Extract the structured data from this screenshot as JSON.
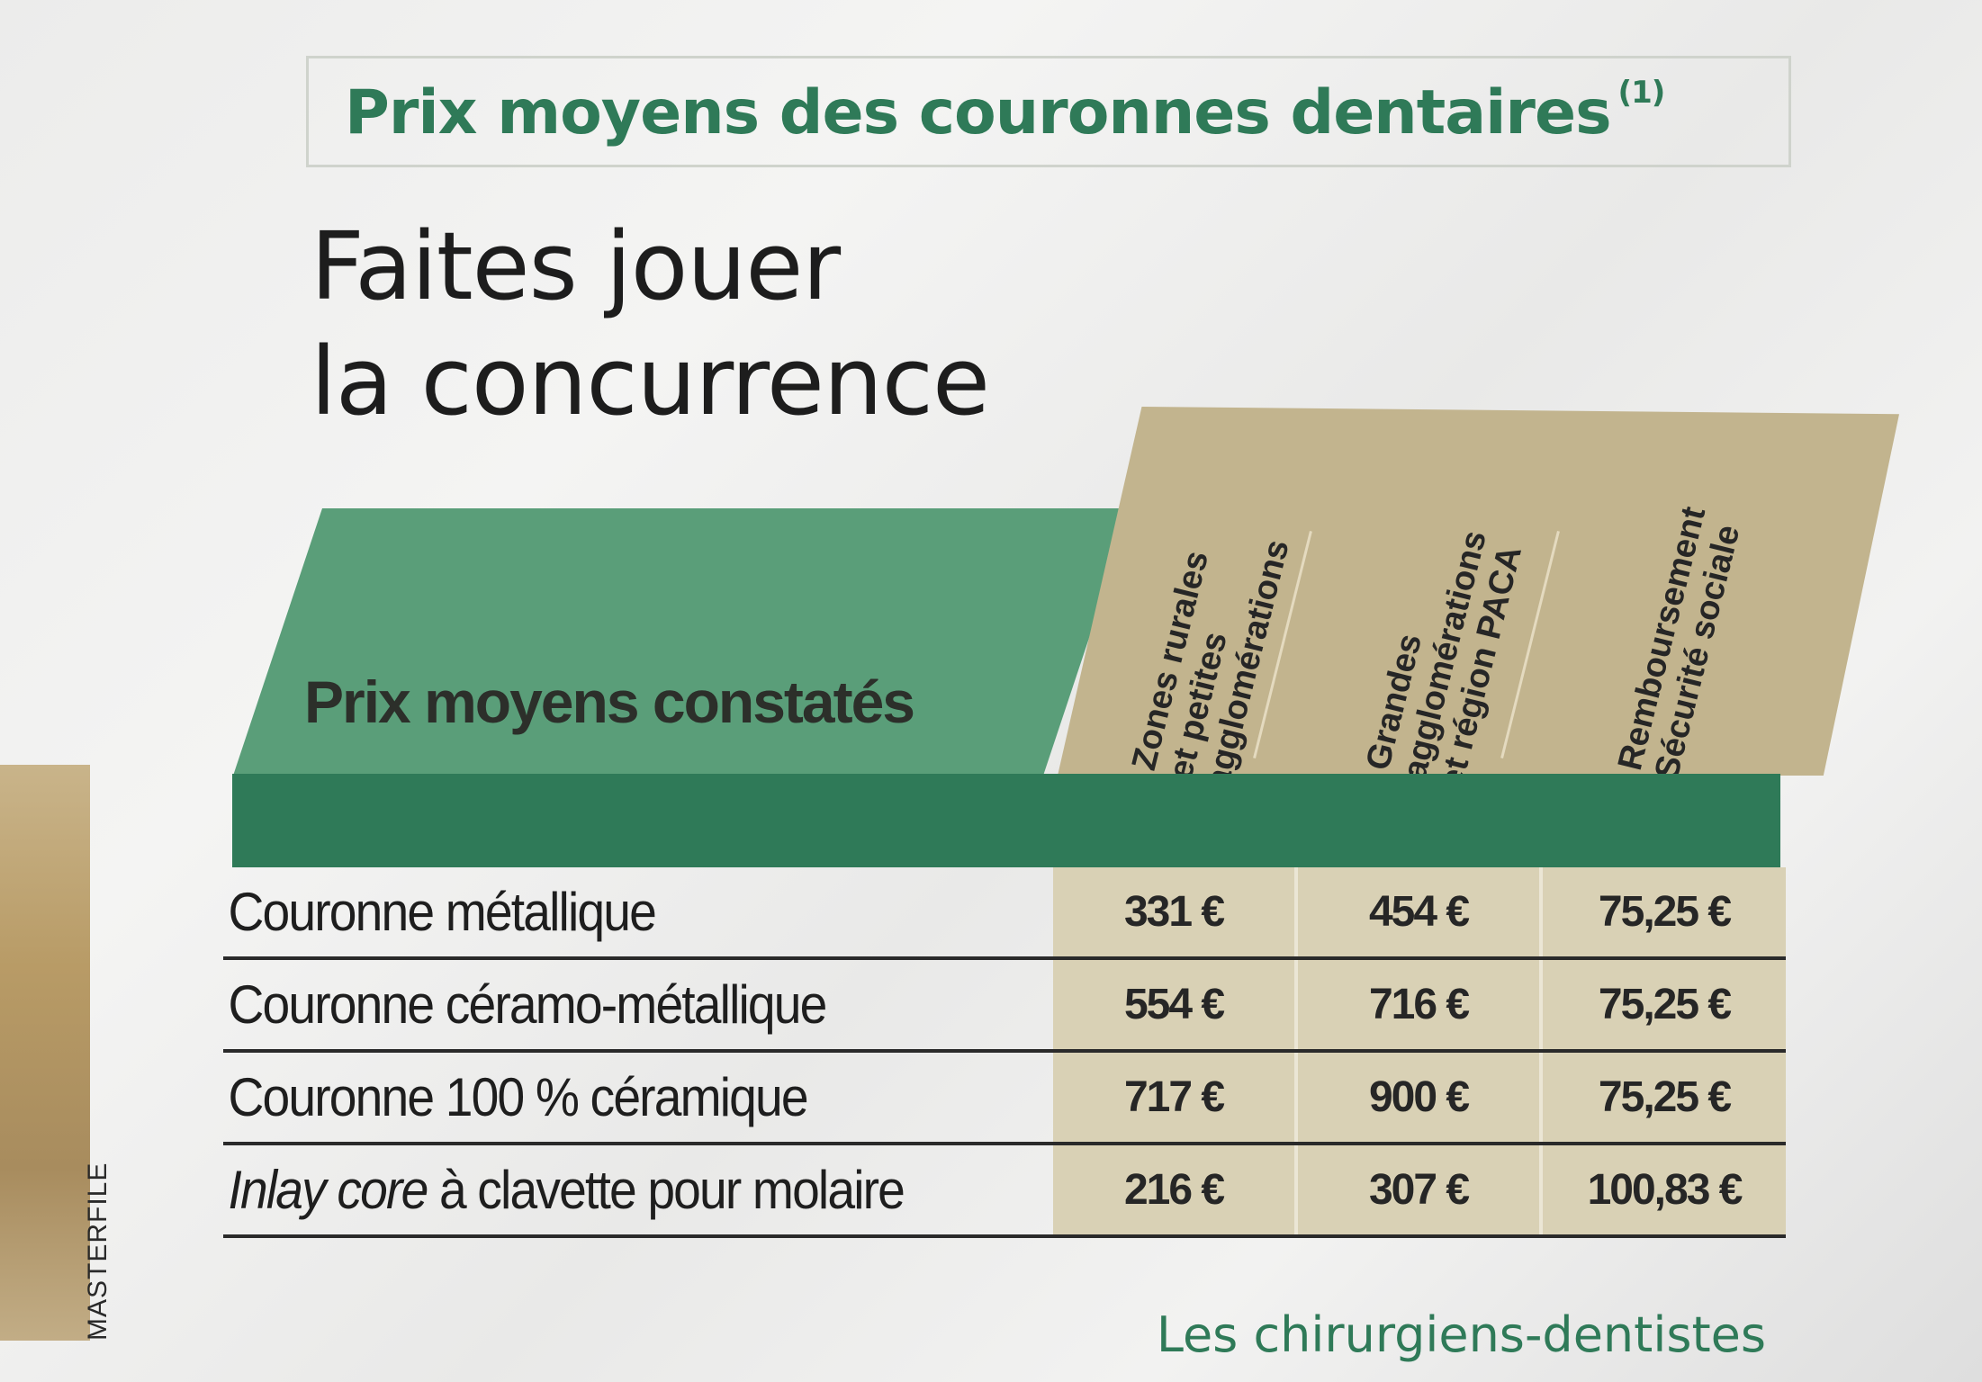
{
  "title": {
    "text": "Prix moyens des couronnes dentaires",
    "note": "(1)"
  },
  "headline": {
    "line1": "Faites jouer",
    "line2": "la concurrence"
  },
  "table": {
    "row_header": "Prix moyens constatés",
    "columns": [
      "Zones rurales\net petites\nagglomérations",
      "Grandes\nagglomérations\net région PACA",
      "Remboursement\nSécurité sociale"
    ],
    "rows": [
      {
        "label": "Couronne métallique",
        "values": [
          "331 €",
          "454 €",
          "75,25 €"
        ]
      },
      {
        "label": "Couronne céramo-métallique",
        "values": [
          "554 €",
          "716 €",
          "75,25 €"
        ]
      },
      {
        "label": "Couronne 100 % céramique",
        "values": [
          "717 €",
          "900 €",
          "75,25 €"
        ]
      },
      {
        "label_italic": "Inlay core",
        "label_rest": " à clavette pour molaire",
        "values": [
          "216 €",
          "307 €",
          "100,83 €"
        ]
      }
    ]
  },
  "footer": "Les chirurgiens-dentistes",
  "credit": "MASTERFILE",
  "colors": {
    "accent_green": "#2f7a58",
    "header_green": "#5a9e79",
    "tan": "#c2b48e",
    "cell_tan": "#d9d1b5"
  }
}
